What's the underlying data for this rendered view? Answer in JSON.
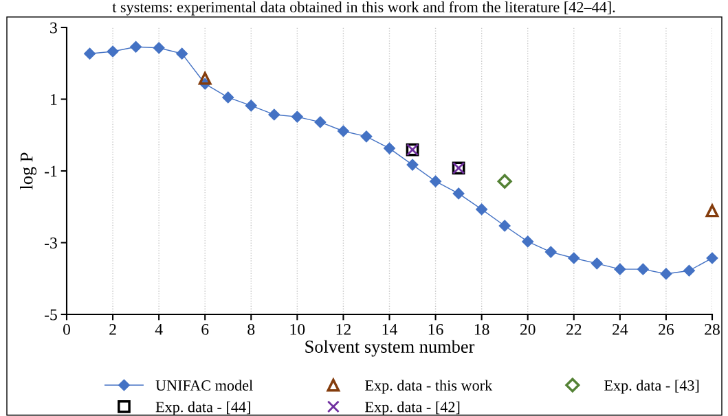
{
  "chart_data": {
    "type": "line",
    "title": "t systems: experimental data obtained in this work and from the literature [42–44].",
    "xlabel": "Solvent system number",
    "ylabel": "log P",
    "xlim": [
      0,
      28
    ],
    "xticks": [
      0,
      2,
      4,
      6,
      8,
      10,
      12,
      14,
      16,
      18,
      20,
      22,
      24,
      26,
      28
    ],
    "ylim": [
      -5,
      3
    ],
    "yticks": [
      -5,
      -3,
      -1,
      1,
      3
    ],
    "grid": "x",
    "legend": "bottom",
    "series": [
      {
        "name": "UNIFAC model",
        "color": "#4472c4",
        "marker": "diamond",
        "line_style": "solid",
        "x": [
          1,
          2,
          3,
          4,
          5,
          6,
          7,
          8,
          9,
          10,
          11,
          12,
          13,
          14,
          15,
          16,
          17,
          18,
          19,
          20,
          21,
          22,
          23,
          24,
          25,
          26,
          27,
          28
        ],
        "values": [
          2.27,
          2.33,
          2.46,
          2.43,
          2.27,
          1.43,
          1.05,
          0.82,
          0.57,
          0.51,
          0.36,
          0.11,
          -0.04,
          -0.37,
          -0.83,
          -1.29,
          -1.63,
          -2.07,
          -2.53,
          -2.97,
          -3.26,
          -3.43,
          -3.58,
          -3.74,
          -3.74,
          -3.87,
          -3.78,
          -3.43
        ]
      },
      {
        "name": "Exp. data - this work",
        "type": "scatter",
        "color": "#843c0c",
        "marker": "triangle",
        "x": [
          6,
          28
        ],
        "values": [
          1.58,
          -2.11
        ]
      },
      {
        "name": "Exp. data - [43]",
        "type": "scatter",
        "color": "#548235",
        "marker": "diamond",
        "x": [
          19
        ],
        "values": [
          -1.29
        ]
      },
      {
        "name": "Exp. data - [44]",
        "type": "scatter",
        "color": "#000000",
        "marker": "square",
        "x": [
          15,
          17
        ],
        "values": [
          -0.41,
          -0.92
        ]
      },
      {
        "name": "Exp. data - [42]",
        "type": "scatter",
        "color": "#7030a0",
        "marker": "cross",
        "x": [
          15,
          17
        ],
        "values": [
          -0.41,
          -0.92
        ]
      }
    ]
  }
}
